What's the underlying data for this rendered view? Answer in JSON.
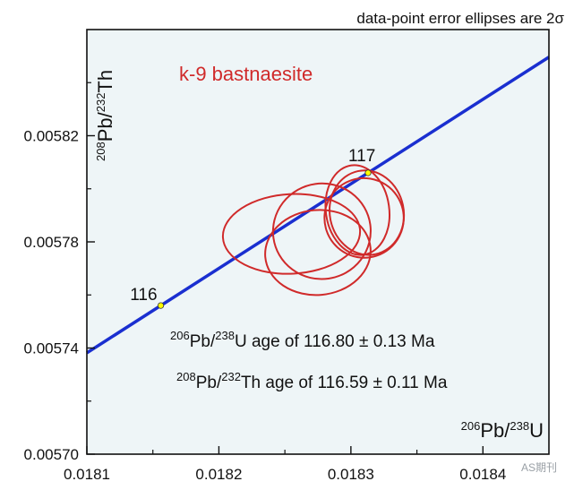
{
  "chart_data": {
    "type": "scatter",
    "subtype": "concordia-ellipses",
    "note": "data-point error ellipses are 2σ",
    "sample_label": "k-9 bastnaesite",
    "x_axis": {
      "label_parts": [
        {
          "text": "206",
          "sup": true
        },
        {
          "text": "Pb/",
          "sup": false
        },
        {
          "text": "238",
          "sup": true
        },
        {
          "text": "U",
          "sup": false
        }
      ],
      "range": [
        0.0181,
        0.01845
      ],
      "ticks": [
        "0.0181",
        "0.0182",
        "0.0183",
        "0.0184"
      ]
    },
    "y_axis": {
      "label_parts": [
        {
          "text": "208",
          "sup": true
        },
        {
          "text": "Pb/",
          "sup": false
        },
        {
          "text": "232",
          "sup": true
        },
        {
          "text": "Th",
          "sup": false
        }
      ],
      "range": [
        0.0057,
        0.00586
      ],
      "ticks": [
        "0.00570",
        "0.00574",
        "0.00578",
        "0.00582"
      ]
    },
    "concordia_points": [
      {
        "label": "116",
        "x": 0.018156,
        "y": 0.005756
      },
      {
        "label": "117",
        "x": 0.018313,
        "y": 0.005806
      }
    ],
    "ellipses": [
      {
        "cx": 0.018255,
        "cy": 0.005783,
        "rx": 5.2e-05,
        "ry": 1.5e-05,
        "angle": -3
      },
      {
        "cx": 0.018278,
        "cy": 0.005784,
        "rx": 3.7e-05,
        "ry": 1.8e-05,
        "angle": -8
      },
      {
        "cx": 0.018275,
        "cy": 0.005776,
        "rx": 4e-05,
        "ry": 1.6e-05,
        "angle": -5
      },
      {
        "cx": 0.018312,
        "cy": 0.005791,
        "rx": 2.8e-05,
        "ry": 1.6e-05,
        "angle": -12
      },
      {
        "cx": 0.018305,
        "cy": 0.005792,
        "rx": 2.4e-05,
        "ry": 1.7e-05,
        "angle": -8
      },
      {
        "cx": 0.01831,
        "cy": 0.005789,
        "rx": 3e-05,
        "ry": 1.5e-05,
        "angle": -18
      }
    ],
    "ages": [
      {
        "parts": [
          {
            "text": "206",
            "sup": true
          },
          {
            "text": "Pb/",
            "sup": false
          },
          {
            "text": "238",
            "sup": true
          },
          {
            "text": "U age of 116.80 ± 0.13 Ma",
            "sup": false
          }
        ]
      },
      {
        "parts": [
          {
            "text": "208",
            "sup": true
          },
          {
            "text": "Pb/",
            "sup": false
          },
          {
            "text": "232",
            "sup": true
          },
          {
            "text": "Th age of 116.59 ± 0.11 Ma",
            "sup": false
          }
        ]
      }
    ],
    "colors": {
      "background": "#eef5f7",
      "concordia": "#1a2fd0",
      "ellipse": "#d02a2a",
      "point_fill": "#ffff00"
    },
    "watermark": "AS期刊"
  }
}
